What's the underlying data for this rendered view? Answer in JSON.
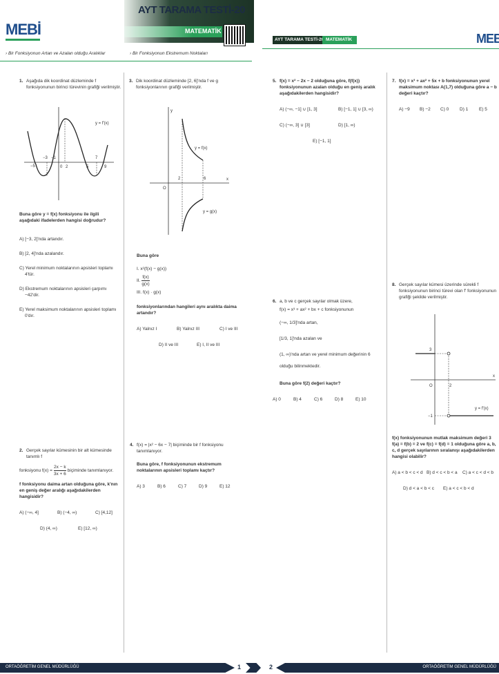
{
  "header": {
    "logo": "MEBİ",
    "title": "AYT TARAMA TESTİ-20",
    "subject": "MATEMATİK",
    "topics": [
      "› Bir Fonksiyonun Artan ve Azalan olduğu Aralıklar",
      "› Bir Fonksiyonun Ekstremum Noktaları"
    ]
  },
  "right_header": {
    "title": "AYT TARAMA TESTİ-20",
    "subject": "MATEMATİK",
    "logo": "MEBİ"
  },
  "questions": [
    {
      "number": "1.",
      "stem": [
        "Aşağıda dik koordinat düzleminde f fonksiyonunun birinci türevinin grafiği verilmiştir."
      ],
      "figure": [
        "y = f'(x)",
        "−5",
        "−3",
        "−1",
        "0",
        "2",
        "5",
        "7",
        "9"
      ],
      "question": [
        "Buna göre y = f(x) fonksiyonu ile ilgili aşağıdaki ifadelerden hangisi doğrudur?"
      ],
      "options": [
        "A) [−3, 2]'nda artandır.",
        "B) [2, 4]'nda azalandır.",
        "C) Yerel minimum noktalarının apsisleri toplamı 4'tür.",
        "D) Ekstremum noktalarının apsisleri çarpımı −42'dir.",
        "E) Yerel maksimum noktalarının apsisleri toplamı 0'dır."
      ]
    },
    {
      "number": "2.",
      "stem": [
        "Gerçek sayılar kümesinin bir alt kümesinde tanımlı f",
        "fonksiyonu f(x) =",
        "2x − k",
        "3x + 6",
        "biçiminde tanımlanıyor."
      ],
      "question": [
        "f fonksiyonu daima artan olduğuna göre, k'nın en geniş değer aralığı aşağıdakilerden hangisidir?"
      ],
      "options": [
        "A) (−∞, 4]",
        "B) (−4, ∞)",
        "C) [4,12]",
        "D) (4, ∞)",
        "E) [12, ∞)"
      ]
    },
    {
      "number": "3.",
      "stem": [
        "Dik koordinat düzleminde [2, 6]'nda f ve g fonksiyonlarının grafiği verilmiştir."
      ],
      "figure": [
        "y",
        "x",
        "O",
        "2",
        "6",
        "y = f(x)",
        "y = g(x)"
      ],
      "question": [
        "Buna göre",
        "I. x²(f(x) − g(x))",
        "II.",
        "f(x)",
        "g(x)",
        "III. f(x) · g(x)",
        "fonksiyonlarından hangileri aynı aralıkta daima artandır?"
      ],
      "options": [
        "A) Yalnız I",
        "B) Yalnız III",
        "C) I ve III",
        "D) II ve III",
        "E) I, II ve III"
      ]
    },
    {
      "number": "4.",
      "stem": [
        "f(x) = |x² − 6x − 7| biçiminde bir f fonksiyonu tanımlanıyor."
      ],
      "question": [
        "Buna göre, f fonksiyonunun ekstremum noktalarının apsisleri toplamı kaçtır?"
      ],
      "options": [
        "A) 3",
        "B) 6",
        "C) 7",
        "D) 9",
        "E) 12"
      ]
    },
    {
      "number": "5.",
      "stem": [
        "f(x) = x² − 2x − 2 olduğuna göre, f(f(x)) fonksiyonunun azalan olduğu en geniş aralık aşağıdakilerden hangisidir?"
      ],
      "options": [
        "A) (−∞, −1] ∪ [1, 3]",
        "B) [−1, 1] ∪ [3, ∞)",
        "C) (−∞, 3] ∪ [3]",
        "D) [1, ∞)",
        "E) [−1, 1]"
      ]
    },
    {
      "number": "6.",
      "stem": [
        "a, b ve c gerçek sayılar olmak üzere,",
        "f(x) = x³ + ax² + bx + c fonksiyonunun",
        "(−∞, 1/3]'nda artan,",
        "[1/3, 1]'nda azalan ve",
        "(1, ∞)'nda artan ve yerel minimum değerinin 6",
        "olduğu bilinmektedir."
      ],
      "question": [
        "Buna göre f(2) değeri kaçtır?"
      ],
      "options": [
        "A) 0",
        "B) 4",
        "C) 6",
        "D) 8",
        "E) 10"
      ]
    },
    {
      "number": "7.",
      "stem": [
        "f(x) = x³ + ax² + 5x + b fonksiyonunun yerel maksimum noktası A(1,7) olduğuna göre a − b değeri kaçtır?"
      ],
      "options": [
        "A) −9",
        "B) −2",
        "C) 0",
        "D) 1",
        "E) 5"
      ]
    },
    {
      "number": "8.",
      "stem": [
        "Gerçek sayılar kümesi üzerinde sürekli f fonksiyonunun birinci türevi olan f' fonksiyonunun grafiği şekilde verilmiştir."
      ],
      "figure": [
        "3",
        "O",
        "2",
        "−1",
        "y = f'(x)",
        "x"
      ],
      "question": [
        "f(x) fonksiyonunun mutlak maksimum değeri 3 f(a) = f(b) = 2 ve f(c) = f(d) = 1 olduğuna göre a, b, c, d gerçek sayılarının sıralanışı aşağıdakilerden hangisi olabilir?"
      ],
      "options": [
        "A) a < b < c < d",
        "B) d < c < b < a",
        "C) a < c < d < b",
        "D) d < a < b < c",
        "E) a < c < b < d"
      ]
    }
  ],
  "footer": {
    "left": "ORTAÖĞRETİM GENEL MÜDÜRLÜĞÜ",
    "page_left": "1",
    "page_right": "2",
    "right": "ORTAÖĞRETİM GENEL MÜDÜRLÜĞÜ"
  }
}
